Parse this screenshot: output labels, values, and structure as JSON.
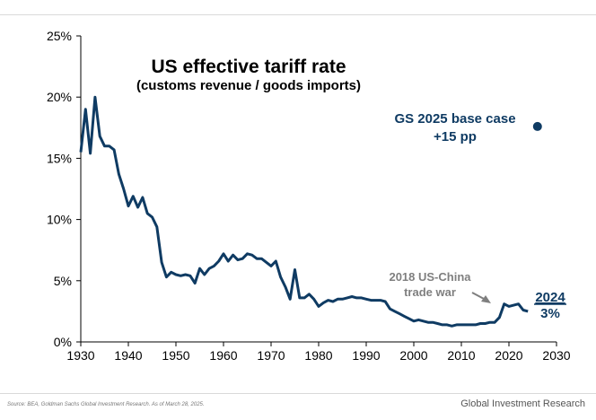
{
  "chart_data": {
    "type": "line",
    "title": "US effective tariff rate",
    "subtitle": "(customs revenue / goods imports)",
    "xlabel": "",
    "ylabel": "",
    "xlim": [
      1930,
      2030
    ],
    "ylim": [
      0,
      25
    ],
    "x_ticks": [
      "1930",
      "1940",
      "1950",
      "1960",
      "1970",
      "1980",
      "1990",
      "2000",
      "2010",
      "2020",
      "2030"
    ],
    "y_ticks": [
      "0%",
      "5%",
      "10%",
      "15%",
      "20%",
      "25%"
    ],
    "grid": false,
    "series": [
      {
        "color": "#0f3b63",
        "points": [
          [
            1930,
            15.5
          ],
          [
            1931,
            19.0
          ],
          [
            1932,
            15.4
          ],
          [
            1933,
            20.0
          ],
          [
            1934,
            16.8
          ],
          [
            1935,
            16.0
          ],
          [
            1936,
            16.0
          ],
          [
            1937,
            15.7
          ],
          [
            1938,
            13.7
          ],
          [
            1939,
            12.5
          ],
          [
            1940,
            11.1
          ],
          [
            1941,
            11.9
          ],
          [
            1942,
            11.0
          ],
          [
            1943,
            11.8
          ],
          [
            1944,
            10.5
          ],
          [
            1945,
            10.2
          ],
          [
            1946,
            9.4
          ],
          [
            1947,
            6.5
          ],
          [
            1948,
            5.3
          ],
          [
            1949,
            5.7
          ],
          [
            1950,
            5.5
          ],
          [
            1951,
            5.4
          ],
          [
            1952,
            5.5
          ],
          [
            1953,
            5.4
          ],
          [
            1954,
            4.8
          ],
          [
            1955,
            6.0
          ],
          [
            1956,
            5.5
          ],
          [
            1957,
            6.0
          ],
          [
            1958,
            6.2
          ],
          [
            1959,
            6.6
          ],
          [
            1960,
            7.2
          ],
          [
            1961,
            6.6
          ],
          [
            1962,
            7.1
          ],
          [
            1963,
            6.7
          ],
          [
            1964,
            6.8
          ],
          [
            1965,
            7.2
          ],
          [
            1966,
            7.1
          ],
          [
            1967,
            6.8
          ],
          [
            1968,
            6.8
          ],
          [
            1969,
            6.5
          ],
          [
            1970,
            6.2
          ],
          [
            1971,
            6.6
          ],
          [
            1972,
            5.3
          ],
          [
            1973,
            4.5
          ],
          [
            1974,
            3.5
          ],
          [
            1975,
            5.9
          ],
          [
            1976,
            3.6
          ],
          [
            1977,
            3.6
          ],
          [
            1978,
            3.9
          ],
          [
            1979,
            3.5
          ],
          [
            1980,
            2.9
          ],
          [
            1981,
            3.2
          ],
          [
            1982,
            3.4
          ],
          [
            1983,
            3.3
          ],
          [
            1984,
            3.5
          ],
          [
            1985,
            3.5
          ],
          [
            1986,
            3.6
          ],
          [
            1987,
            3.7
          ],
          [
            1988,
            3.6
          ],
          [
            1989,
            3.6
          ],
          [
            1990,
            3.5
          ],
          [
            1991,
            3.4
          ],
          [
            1992,
            3.4
          ],
          [
            1993,
            3.4
          ],
          [
            1994,
            3.3
          ],
          [
            1995,
            2.7
          ],
          [
            1996,
            2.5
          ],
          [
            1997,
            2.3
          ],
          [
            1998,
            2.1
          ],
          [
            1999,
            1.9
          ],
          [
            2000,
            1.7
          ],
          [
            2001,
            1.8
          ],
          [
            2002,
            1.7
          ],
          [
            2003,
            1.6
          ],
          [
            2004,
            1.6
          ],
          [
            2005,
            1.5
          ],
          [
            2006,
            1.4
          ],
          [
            2007,
            1.4
          ],
          [
            2008,
            1.3
          ],
          [
            2009,
            1.4
          ],
          [
            2010,
            1.4
          ],
          [
            2011,
            1.4
          ],
          [
            2012,
            1.4
          ],
          [
            2013,
            1.4
          ],
          [
            2014,
            1.5
          ],
          [
            2015,
            1.5
          ],
          [
            2016,
            1.6
          ],
          [
            2017,
            1.6
          ],
          [
            2018,
            2.0
          ],
          [
            2019,
            3.1
          ],
          [
            2020,
            2.9
          ],
          [
            2021,
            3.0
          ],
          [
            2022,
            3.1
          ],
          [
            2023,
            2.6
          ],
          [
            2024,
            2.5
          ]
        ]
      }
    ],
    "projection_point": {
      "x": 2026,
      "y": 17.6,
      "color": "#0f3b63"
    },
    "annotations": {
      "projection_label_line1": "GS 2025 base case",
      "projection_label_line2": "+15 pp",
      "trade_war_line1": "2018 US-China",
      "trade_war_line2": "trade war",
      "end_year": "2024",
      "end_value": "3%"
    },
    "colors": {
      "line": "#0f3b63",
      "annotation_gray": "#7f7f7f",
      "axis": "#000000"
    }
  },
  "footer": {
    "source": "Source: BEA, Goldman Sachs Global Investment Research. As of March 28, 2025.",
    "brand": "Global Investment Research"
  }
}
